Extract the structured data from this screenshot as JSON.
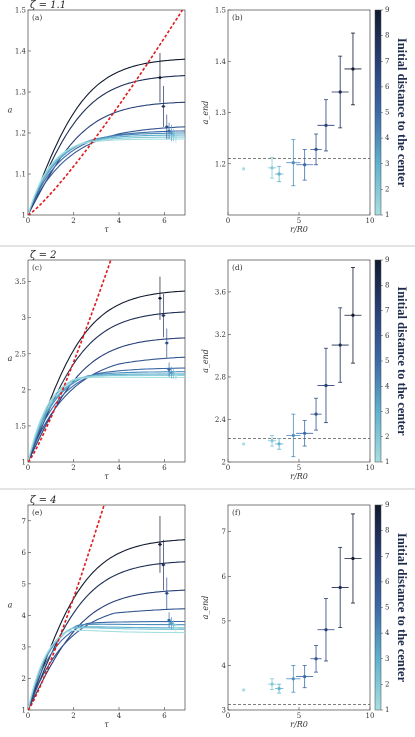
{
  "colorbar": {
    "label": "Initial distance to the center",
    "ticks": [
      "1",
      "2",
      "3",
      "4",
      "5",
      "6",
      "7",
      "8",
      "9"
    ],
    "color_low": "#a6dfe0",
    "color_high": "#111a2e"
  },
  "chart_data": [
    {
      "type": "line",
      "panel": "a",
      "panel_label": "(a)",
      "title": "ζ = 1.1",
      "xlabel": "τ",
      "ylabel": "a",
      "xlim": [
        0,
        6.9
      ],
      "ylim": [
        1,
        1.5
      ],
      "xticks": [
        "0",
        "2",
        "4",
        "6"
      ],
      "yticks": [
        "1",
        "1.1",
        "1.2",
        "1.3",
        "1.4",
        "1.5"
      ],
      "series": [
        {
          "final": 1.38,
          "peak_t": 6.8,
          "rel": 0.0
        },
        {
          "final": 1.34,
          "peak_t": 6.8,
          "rel": 0.0
        },
        {
          "final": 1.275,
          "peak_t": 6.8,
          "rel": 0.0
        },
        {
          "final": 1.215,
          "peak_t": 4.0,
          "rel": 0.01
        },
        {
          "final": 1.205,
          "peak_t": 3.2,
          "rel": 0.02
        },
        {
          "final": 1.2,
          "peak_t": 2.8,
          "rel": 0.025
        },
        {
          "final": 1.195,
          "peak_t": 2.6,
          "rel": 0.03
        },
        {
          "final": 1.19,
          "peak_t": 2.4,
          "rel": 0.035
        },
        {
          "final": 1.185,
          "peak_t": 2.2,
          "rel": 0.04
        }
      ],
      "dashed_limit": {
        "color": "#e0191d",
        "x_end": 6.9
      },
      "endpoint_points": [
        {
          "x": 5.8,
          "y": 1.335,
          "yerr": 0.06
        },
        {
          "x": 5.95,
          "y": 1.265,
          "yerr": 0.05
        },
        {
          "x": 6.1,
          "y": 1.215,
          "yerr": 0.03
        },
        {
          "x": 6.2,
          "y": 1.205,
          "yerr": 0.02
        },
        {
          "x": 6.3,
          "y": 1.2,
          "yerr": 0.02
        },
        {
          "x": 6.4,
          "y": 1.195,
          "yerr": 0.015
        },
        {
          "x": 6.5,
          "y": 1.19,
          "yerr": 0.015
        }
      ]
    },
    {
      "type": "scatter",
      "panel": "b",
      "panel_label": "(b)",
      "xlabel": "r/R0",
      "ylabel": "a_end",
      "xlim": [
        0,
        10
      ],
      "ylim": [
        1.1,
        1.5
      ],
      "xticks": [
        "0",
        "5",
        "10"
      ],
      "yticks": [
        "1.2",
        "1.3",
        "1.4",
        "1.5"
      ],
      "hline": 1.21,
      "points": [
        {
          "x": 1.1,
          "y": 1.19,
          "xerr": 0.0,
          "yerr": 0.0,
          "c": 1
        },
        {
          "x": 3.1,
          "y": 1.192,
          "xerr": 0.3,
          "yerr": 0.02,
          "c": 2
        },
        {
          "x": 3.6,
          "y": 1.18,
          "xerr": 0.3,
          "yerr": 0.015,
          "c": 3
        },
        {
          "x": 4.6,
          "y": 1.202,
          "xerr": 0.5,
          "yerr": 0.045,
          "c": 4
        },
        {
          "x": 5.4,
          "y": 1.198,
          "xerr": 0.6,
          "yerr": 0.03,
          "c": 5
        },
        {
          "x": 6.2,
          "y": 1.228,
          "xerr": 0.4,
          "yerr": 0.03,
          "c": 6
        },
        {
          "x": 6.9,
          "y": 1.275,
          "xerr": 0.6,
          "yerr": 0.05,
          "c": 7
        },
        {
          "x": 7.9,
          "y": 1.34,
          "xerr": 0.6,
          "yerr": 0.07,
          "c": 8
        },
        {
          "x": 8.8,
          "y": 1.385,
          "xerr": 0.6,
          "yerr": 0.07,
          "c": 9
        }
      ]
    },
    {
      "type": "line",
      "panel": "c",
      "panel_label": "(c)",
      "title": "ζ = 2",
      "xlabel": "τ",
      "ylabel": "a",
      "xlim": [
        0,
        6.9
      ],
      "ylim": [
        1,
        3.8
      ],
      "xticks": [
        "0",
        "2",
        "4",
        "6"
      ],
      "yticks": [
        "1",
        "1.5",
        "2",
        "2.5",
        "3",
        "3.5"
      ],
      "series": [
        {
          "final": 3.37,
          "peak_t": 6.8,
          "rel": 0.0
        },
        {
          "final": 3.08,
          "peak_t": 6.8,
          "rel": 0.0
        },
        {
          "final": 2.72,
          "peak_t": 6.8,
          "rel": 0.0
        },
        {
          "final": 2.45,
          "peak_t": 4.0,
          "rel": 0.03
        },
        {
          "final": 2.3,
          "peak_t": 3.0,
          "rel": 0.05
        },
        {
          "final": 2.25,
          "peak_t": 2.6,
          "rel": 0.07
        },
        {
          "final": 2.22,
          "peak_t": 2.4,
          "rel": 0.08
        },
        {
          "final": 2.2,
          "peak_t": 2.2,
          "rel": 0.09
        },
        {
          "final": 2.17,
          "peak_t": 2.0,
          "rel": 0.1
        }
      ],
      "dashed_limit": {
        "color": "#e0191d",
        "x_end": 3.7
      },
      "endpoint_points": [
        {
          "x": 5.8,
          "y": 3.27,
          "yerr": 0.3
        },
        {
          "x": 5.95,
          "y": 3.03,
          "yerr": 0.3
        },
        {
          "x": 6.1,
          "y": 2.65,
          "yerr": 0.2
        },
        {
          "x": 6.2,
          "y": 2.28,
          "yerr": 0.1
        },
        {
          "x": 6.3,
          "y": 2.24,
          "yerr": 0.08
        },
        {
          "x": 6.4,
          "y": 2.22,
          "yerr": 0.07
        },
        {
          "x": 6.5,
          "y": 2.2,
          "yerr": 0.06
        }
      ]
    },
    {
      "type": "scatter",
      "panel": "d",
      "panel_label": "(d)",
      "xlabel": "r/R0",
      "ylabel": "a_end",
      "xlim": [
        0,
        10
      ],
      "ylim": [
        2.0,
        3.9
      ],
      "xticks": [
        "0",
        "5",
        "10"
      ],
      "yticks": [
        "2",
        "2.4",
        "2.8",
        "3.2",
        "3.6"
      ],
      "hline": 2.22,
      "points": [
        {
          "x": 1.1,
          "y": 2.17,
          "xerr": 0.0,
          "yerr": 0.0,
          "c": 1
        },
        {
          "x": 3.1,
          "y": 2.2,
          "xerr": 0.3,
          "yerr": 0.05,
          "c": 2
        },
        {
          "x": 3.6,
          "y": 2.17,
          "xerr": 0.3,
          "yerr": 0.05,
          "c": 3
        },
        {
          "x": 4.6,
          "y": 2.25,
          "xerr": 0.5,
          "yerr": 0.2,
          "c": 4
        },
        {
          "x": 5.4,
          "y": 2.27,
          "xerr": 0.6,
          "yerr": 0.12,
          "c": 5
        },
        {
          "x": 6.2,
          "y": 2.45,
          "xerr": 0.4,
          "yerr": 0.15,
          "c": 6
        },
        {
          "x": 6.9,
          "y": 2.72,
          "xerr": 0.6,
          "yerr": 0.35,
          "c": 7
        },
        {
          "x": 7.9,
          "y": 3.1,
          "xerr": 0.6,
          "yerr": 0.35,
          "c": 8
        },
        {
          "x": 8.8,
          "y": 3.38,
          "xerr": 0.6,
          "yerr": 0.45,
          "c": 9
        }
      ]
    },
    {
      "type": "line",
      "panel": "e",
      "panel_label": "(e)",
      "title": "ζ = 4",
      "xlabel": "τ",
      "ylabel": "a",
      "xlim": [
        0,
        6.9
      ],
      "ylim": [
        1,
        7.5
      ],
      "xticks": [
        "0",
        "2",
        "4",
        "6"
      ],
      "yticks": [
        "1",
        "2",
        "3",
        "4",
        "5",
        "6",
        "7"
      ],
      "series": [
        {
          "final": 6.4,
          "peak_t": 6.8,
          "rel": 0.0
        },
        {
          "final": 5.7,
          "peak_t": 6.8,
          "rel": 0.0
        },
        {
          "final": 4.8,
          "peak_t": 6.8,
          "rel": 0.0
        },
        {
          "final": 4.2,
          "peak_t": 3.8,
          "rel": 0.06
        },
        {
          "final": 3.8,
          "peak_t": 2.6,
          "rel": 0.1
        },
        {
          "final": 3.7,
          "peak_t": 2.2,
          "rel": 0.12
        },
        {
          "final": 3.6,
          "peak_t": 2.0,
          "rel": 0.13
        },
        {
          "final": 3.55,
          "peak_t": 1.9,
          "rel": 0.14
        },
        {
          "final": 3.45,
          "peak_t": 1.8,
          "rel": 0.15
        }
      ],
      "dashed_limit": {
        "color": "#e0191d",
        "x_end": 3.4
      },
      "endpoint_points": [
        {
          "x": 5.8,
          "y": 6.25,
          "yerr": 0.9
        },
        {
          "x": 5.95,
          "y": 5.6,
          "yerr": 0.8
        },
        {
          "x": 6.1,
          "y": 4.7,
          "yerr": 0.5
        },
        {
          "x": 6.2,
          "y": 3.85,
          "yerr": 0.25
        },
        {
          "x": 6.3,
          "y": 3.75,
          "yerr": 0.2
        },
        {
          "x": 6.4,
          "y": 3.7,
          "yerr": 0.15
        },
        {
          "x": 6.5,
          "y": 3.6,
          "yerr": 0.15
        }
      ]
    },
    {
      "type": "scatter",
      "panel": "f",
      "panel_label": "(f)",
      "xlabel": "r/R0",
      "ylabel": "a_end",
      "xlim": [
        0,
        10
      ],
      "ylim": [
        3.0,
        7.6
      ],
      "xticks": [
        "0",
        "5",
        "10"
      ],
      "yticks": [
        "3",
        "4",
        "5",
        "6",
        "7"
      ],
      "hline": 3.12,
      "points": [
        {
          "x": 1.1,
          "y": 3.45,
          "xerr": 0.0,
          "yerr": 0.0,
          "c": 1
        },
        {
          "x": 3.1,
          "y": 3.58,
          "xerr": 0.3,
          "yerr": 0.12,
          "c": 2
        },
        {
          "x": 3.6,
          "y": 3.48,
          "xerr": 0.3,
          "yerr": 0.1,
          "c": 3
        },
        {
          "x": 4.6,
          "y": 3.7,
          "xerr": 0.5,
          "yerr": 0.3,
          "c": 4
        },
        {
          "x": 5.4,
          "y": 3.75,
          "xerr": 0.6,
          "yerr": 0.25,
          "c": 5
        },
        {
          "x": 6.2,
          "y": 4.15,
          "xerr": 0.4,
          "yerr": 0.3,
          "c": 6
        },
        {
          "x": 6.9,
          "y": 4.8,
          "xerr": 0.6,
          "yerr": 0.7,
          "c": 7
        },
        {
          "x": 7.9,
          "y": 5.75,
          "xerr": 0.6,
          "yerr": 0.9,
          "c": 8
        },
        {
          "x": 8.8,
          "y": 6.4,
          "xerr": 0.6,
          "yerr": 1.0,
          "c": 9
        }
      ]
    }
  ]
}
